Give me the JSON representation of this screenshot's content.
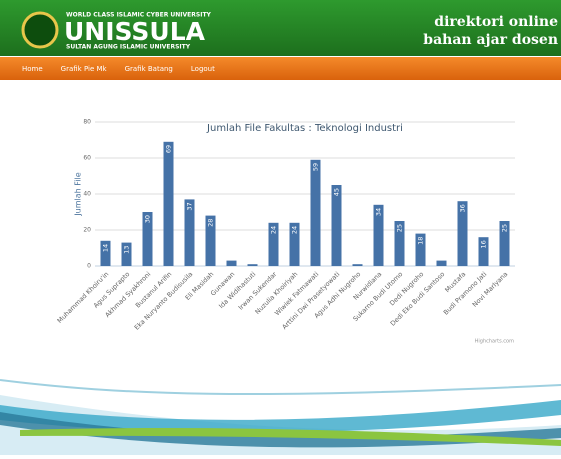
{
  "header": {
    "tagline": "WORLD CLASS ISLAMIC CYBER UNIVERSITY",
    "name": "UNISSULA",
    "subtitle": "SULTAN AGUNG ISLAMIC UNIVERSITY",
    "right_line1": "direktori online",
    "right_line2": "bahan ajar dosen"
  },
  "nav": [
    "Home",
    "Grafik Pie Mk",
    "Grafik Batang",
    "Logout"
  ],
  "chart_data": {
    "type": "bar",
    "title": "Jumlah File Fakultas : Teknologi Industri",
    "y_label": "Jumlah File",
    "credit": "Highcharts.com",
    "color": "#4572a7",
    "grid": true,
    "categories": [
      "Muhammad Khoiru'in",
      "Agus Suprapto",
      "Akhmad Syakhroni",
      "Bustanul Arifin",
      "Eka Nuryanto Budisusila",
      "Eli Masidah",
      "Gunawan",
      "Ida Widihastuti",
      "Irwan Sukendar",
      "Nuzulia Khoiriyah",
      "Wiwiek Fatmawati",
      "Arttini Dwi Prasetyowati",
      "Agus Adhi Nugroho",
      "Nurwidiana",
      "Sukarno Budi Utomo",
      "Dedi Nugroho",
      "Dedi Eko Budi Santoso",
      "Mustafa",
      "Budi Pramono Jati",
      "Novi Marlyana"
    ],
    "values": [
      14,
      13,
      30,
      69,
      37,
      28,
      3,
      1,
      24,
      24,
      59,
      45,
      1,
      34,
      25,
      18,
      3,
      36,
      16,
      25
    ],
    "value_labels": [
      "14",
      "13",
      "30",
      "69",
      "37",
      "28",
      null,
      null,
      "24",
      "24",
      "59",
      "45",
      null,
      "34",
      "25",
      "18",
      null,
      "36",
      "16",
      "25"
    ],
    "ylim": [
      0,
      80
    ],
    "yticks": [
      0,
      20,
      40,
      60,
      80
    ]
  }
}
